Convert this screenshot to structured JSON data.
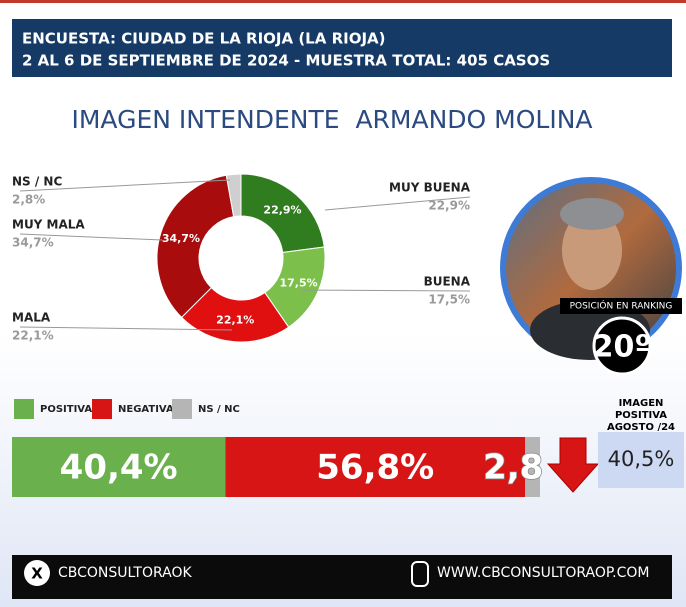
{
  "header": {
    "line1": "ENCUESTA: CIUDAD DE LA RIOJA (LA RIOJA)",
    "line2": "2 AL 6 DE SEPTIEMBRE DE 2024 - MUESTRA TOTAL: 405 CASOS"
  },
  "chart_data": [
    {
      "type": "donut",
      "title": "IMAGEN INTENDENTE  ARMANDO MOLINA",
      "categories": [
        "MUY BUENA",
        "BUENA",
        "MALA",
        "MUY MALA",
        "NS / NC"
      ],
      "values": [
        22.9,
        17.5,
        22.1,
        34.7,
        2.8
      ],
      "value_labels": [
        "22,9%",
        "17,5%",
        "22,1%",
        "34,7%",
        "2,8%"
      ],
      "colors": [
        "#2f7d1e",
        "#7cc04b",
        "#e01010",
        "#a80c0c",
        "#cfcfcf"
      ]
    },
    {
      "type": "stacked-bar",
      "xlim": [
        0,
        100
      ],
      "series": [
        {
          "name": "POSITIVA",
          "color": "#6ab04c",
          "values": [
            40.4
          ],
          "value_labels": [
            "40,4%"
          ]
        },
        {
          "name": "NEGATIVA",
          "color": "#d81515",
          "values": [
            56.8
          ],
          "value_labels": [
            "56,8%"
          ]
        },
        {
          "name": "NS / NC",
          "color": "#b5b5b5",
          "values": [
            2.8
          ],
          "value_labels": [
            "2,8"
          ]
        }
      ]
    }
  ],
  "previous": {
    "label": "IMAGEN POSITIVA AGOSTO /24",
    "value": 40.5,
    "value_label": "40,5%"
  },
  "ranking": {
    "label": "POSICIÓN EN RANKING",
    "value": "20º"
  },
  "footer": {
    "social": "CBCONSULTORAOK",
    "web": "WWW.CBCONSULTORAOP.COM"
  }
}
